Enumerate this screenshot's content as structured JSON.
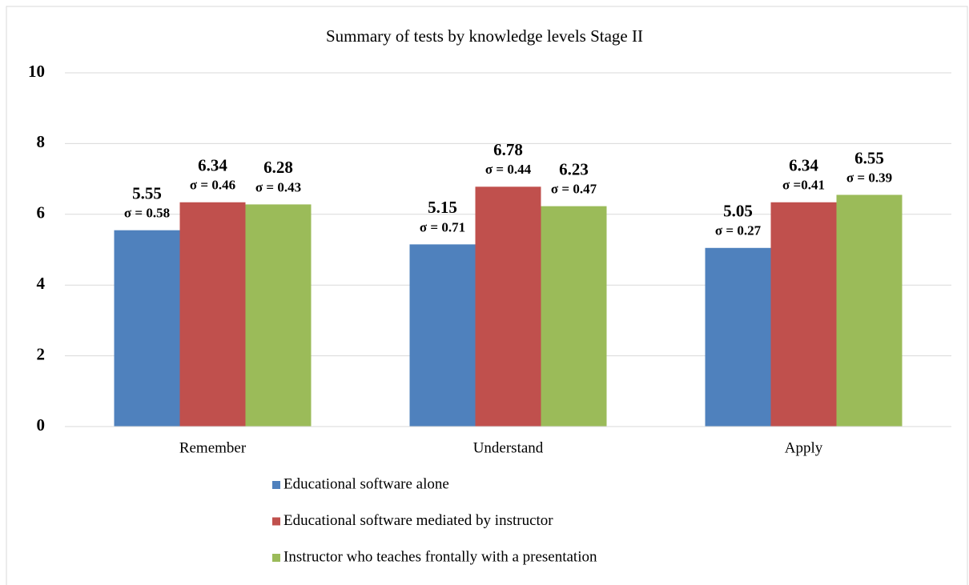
{
  "chart_data": {
    "type": "bar",
    "title": "Summary of tests by knowledge levels Stage II",
    "categories": [
      "Remember",
      "Understand",
      "Apply"
    ],
    "series": [
      {
        "name": "Educational software alone",
        "color": "#4f81bd",
        "values": [
          5.55,
          5.15,
          5.05
        ],
        "sd_labels": [
          "σ = 0.58",
          "σ = 0.71",
          "σ = 0.27"
        ]
      },
      {
        "name": "Educational software mediated by instructor",
        "color": "#c0504d",
        "values": [
          6.34,
          6.78,
          6.34
        ],
        "sd_labels": [
          "σ = 0.46",
          "σ = 0.44",
          "σ =0.41"
        ]
      },
      {
        "name": "Instructor who teaches frontally with a presentation",
        "color": "#9bbb59",
        "values": [
          6.28,
          6.23,
          6.55
        ],
        "sd_labels": [
          "σ = 0.43",
          "σ = 0.47",
          "σ = 0.39"
        ]
      }
    ],
    "ylim": [
      0,
      10
    ],
    "yticks": [
      0,
      2,
      4,
      6,
      8,
      10
    ],
    "grid": true,
    "legend": "bottom"
  }
}
